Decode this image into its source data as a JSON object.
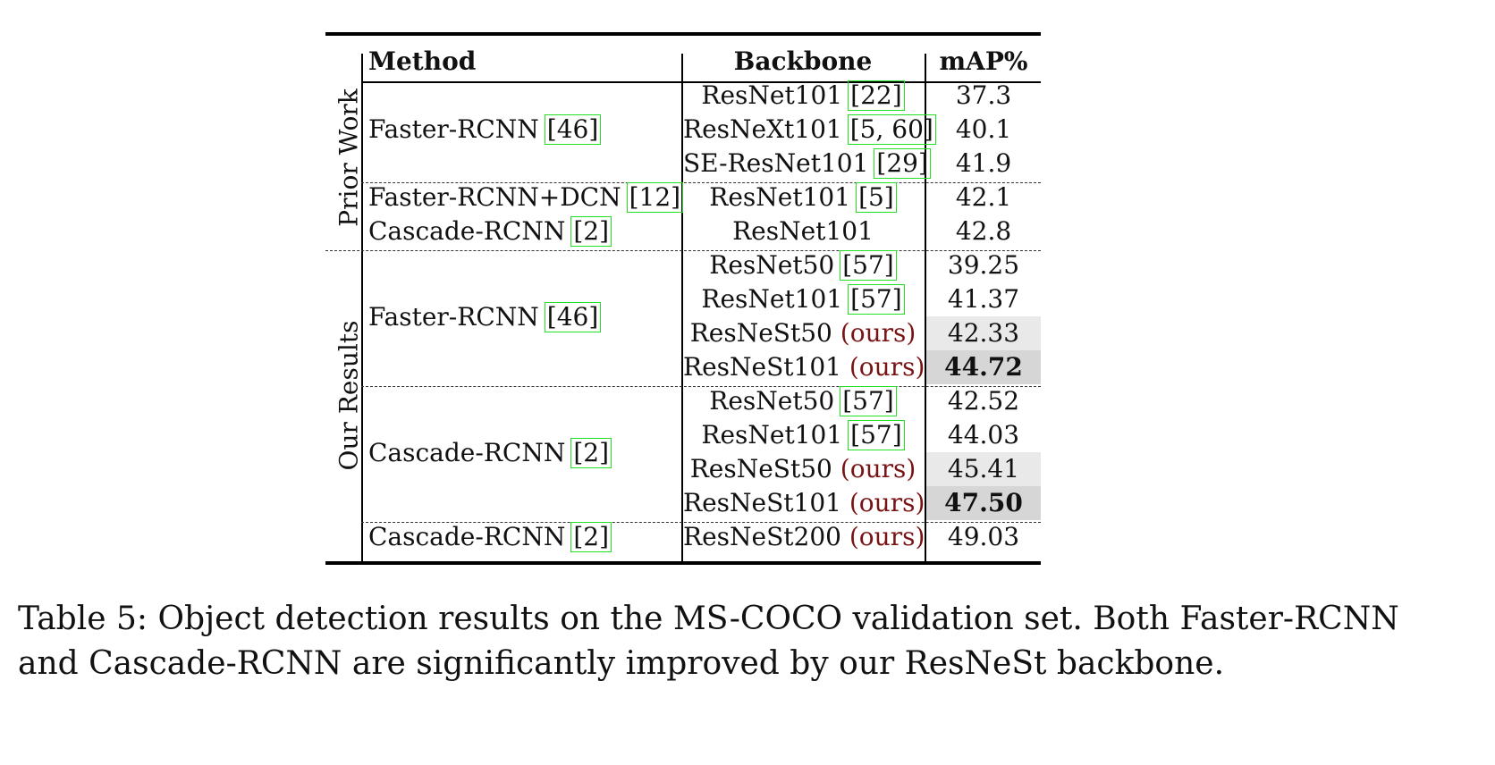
{
  "table": {
    "headers": {
      "method": "Method",
      "backbone": "Backbone",
      "map": "mAP%"
    },
    "group_labels": {
      "prior": "Prior Work",
      "ours": "Our Results"
    },
    "rows": [
      {
        "method": "Faster-RCNN",
        "method_cite": "[46]",
        "backbone": "ResNet101",
        "backbone_cite": "[22]",
        "ours": "",
        "map": "37.3"
      },
      {
        "method": "",
        "method_cite": "",
        "backbone": "ResNeXt101",
        "backbone_cite": "[5, 60]",
        "ours": "",
        "map": "40.1"
      },
      {
        "method": "",
        "method_cite": "",
        "backbone": "SE-ResNet101",
        "backbone_cite": "[29]",
        "ours": "",
        "map": "41.9"
      },
      {
        "method": "Faster-RCNN+DCN",
        "method_cite": "[12]",
        "backbone": "ResNet101",
        "backbone_cite": "[5]",
        "ours": "",
        "map": "42.1"
      },
      {
        "method": "Cascade-RCNN",
        "method_cite": "[2]",
        "backbone": "ResNet101",
        "backbone_cite": "",
        "ours": "",
        "map": "42.8"
      },
      {
        "method": "",
        "method_cite": "",
        "backbone": "ResNet50",
        "backbone_cite": "[57]",
        "ours": "",
        "map": "39.25"
      },
      {
        "method": "",
        "method_cite": "",
        "backbone": "ResNet101",
        "backbone_cite": "[57]",
        "ours": "",
        "map": "41.37"
      },
      {
        "method": "",
        "method_cite": "",
        "backbone": "ResNeSt50",
        "backbone_cite": "",
        "ours": "(ours)",
        "map": "42.33"
      },
      {
        "method": "",
        "method_cite": "",
        "backbone": "ResNeSt101",
        "backbone_cite": "",
        "ours": "(ours)",
        "map": "44.72"
      },
      {
        "method": "",
        "method_cite": "",
        "backbone": "ResNet50",
        "backbone_cite": "[57]",
        "ours": "",
        "map": "42.52"
      },
      {
        "method": "",
        "method_cite": "",
        "backbone": "ResNet101",
        "backbone_cite": "[57]",
        "ours": "",
        "map": "44.03"
      },
      {
        "method": "",
        "method_cite": "",
        "backbone": "ResNeSt50",
        "backbone_cite": "",
        "ours": "(ours)",
        "map": "45.41"
      },
      {
        "method": "",
        "method_cite": "",
        "backbone": "ResNeSt101",
        "backbone_cite": "",
        "ours": "(ours)",
        "map": "47.50"
      },
      {
        "method": "Cascade-RCNN",
        "method_cite": "[2]",
        "backbone": "ResNeSt200",
        "backbone_cite": "",
        "ours": "(ours)",
        "map": "49.03"
      }
    ],
    "merged_methods": [
      {
        "method": "Faster-RCNN",
        "method_cite": "[46]"
      },
      {
        "method": "Cascade-RCNN",
        "method_cite": "[2]"
      }
    ]
  },
  "caption": "Table 5: Object detection results on the MS-COCO validation set. Both Faster-RCNN and Cascade-RCNN are significantly improved by our ResNeSt backbone."
}
